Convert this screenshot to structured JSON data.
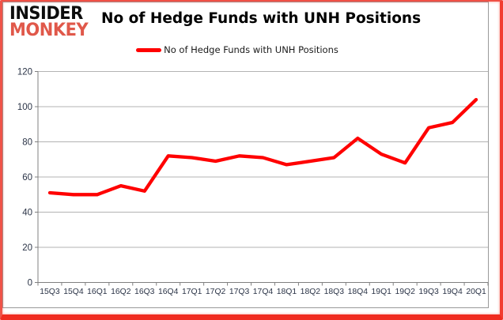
{
  "brand": {
    "line1": "INSIDER",
    "line2": "MONKEY"
  },
  "header": {
    "title": "No of Hedge Funds with UNH Positions"
  },
  "legend": {
    "label": "No of Hedge Funds with UNH Positions",
    "swatch_color": "#ff0000"
  },
  "colors": {
    "series_line": "#ff0000",
    "logo_red": "#e0584a",
    "axis_text": "#2b3447",
    "gridline": "#b3b3b3",
    "axis_line": "#808080",
    "frame_red": "#f23d31"
  },
  "chart_data": {
    "type": "line",
    "title": "No of Hedge Funds with UNH Positions",
    "categories": [
      "15Q3",
      "15Q4",
      "16Q1",
      "16Q2",
      "16Q3",
      "16Q4",
      "17Q1",
      "17Q2",
      "17Q3",
      "17Q4",
      "18Q1",
      "18Q2",
      "18Q3",
      "18Q4",
      "19Q1",
      "19Q2",
      "19Q3",
      "19Q4",
      "20Q1"
    ],
    "series": [
      {
        "name": "No of Hedge Funds with UNH Positions",
        "color": "#ff0000",
        "values": [
          51,
          50,
          50,
          55,
          52,
          72,
          71,
          69,
          72,
          71,
          67,
          69,
          71,
          82,
          73,
          68,
          88,
          91,
          104
        ]
      }
    ],
    "xlabel": "",
    "ylabel": "",
    "ylim": [
      0,
      120
    ],
    "ytick_interval": 20,
    "grid": true,
    "legend_position": "top-center"
  }
}
